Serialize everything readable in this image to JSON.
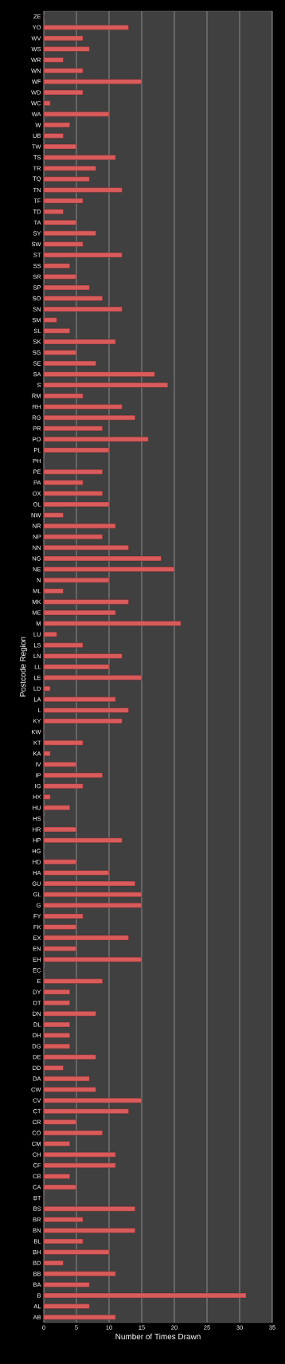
{
  "chart_data": {
    "type": "bar",
    "orientation": "horizontal",
    "xlabel": "Number  of Times Drawn",
    "ylabel": "Postcode Region",
    "categories": [
      "ZE",
      "YO",
      "WV",
      "WS",
      "WR",
      "WN",
      "WF",
      "WD",
      "WC",
      "WA",
      "W",
      "UB",
      "TW",
      "TS",
      "TR",
      "TQ",
      "TN",
      "TF",
      "TD",
      "TA",
      "SY",
      "SW",
      "ST",
      "SS",
      "SR",
      "SP",
      "SO",
      "SN",
      "SM",
      "SL",
      "SK",
      "SG",
      "SE",
      "SA",
      "S",
      "RM",
      "RH",
      "RG",
      "PR",
      "PO",
      "PL",
      "PH",
      "PE",
      "PA",
      "OX",
      "OL",
      "NW",
      "NR",
      "NP",
      "NN",
      "NG",
      "NE",
      "N",
      "ML",
      "MK",
      "ME",
      "M",
      "LU",
      "LS",
      "LN",
      "LL",
      "LE",
      "LD",
      "LA",
      "L",
      "KY",
      "KW",
      "KT",
      "KA",
      "IV",
      "IP",
      "IG",
      "HX",
      "HU",
      "HS",
      "HR",
      "HP",
      "HG",
      "HD",
      "HA",
      "GU",
      "GL",
      "G",
      "FY",
      "FK",
      "EX",
      "EN",
      "EH",
      "EC",
      "E",
      "DY",
      "DT",
      "DN",
      "DL",
      "DH",
      "DG",
      "DE",
      "DD",
      "DA",
      "CW",
      "CV",
      "CT",
      "CR",
      "CO",
      "CM",
      "CH",
      "CF",
      "CB",
      "CA",
      "BT",
      "BS",
      "BR",
      "BN",
      "BL",
      "BH",
      "BD",
      "BB",
      "BA",
      "B",
      "AL",
      "AB"
    ],
    "values": [
      0,
      13,
      6,
      7,
      3,
      6,
      15,
      6,
      1,
      10,
      4,
      3,
      5,
      11,
      8,
      7,
      12,
      6,
      3,
      5,
      8,
      6,
      12,
      4,
      5,
      7,
      9,
      12,
      2,
      4,
      11,
      5,
      8,
      17,
      19,
      6,
      12,
      14,
      9,
      16,
      10,
      0,
      9,
      6,
      9,
      10,
      3,
      11,
      9,
      13,
      18,
      20,
      10,
      3,
      13,
      11,
      21,
      2,
      6,
      12,
      10,
      15,
      1,
      11,
      13,
      12,
      0,
      6,
      1,
      5,
      9,
      6,
      1,
      4,
      0,
      5,
      12,
      0,
      5,
      10,
      14,
      15,
      15,
      6,
      5,
      13,
      5,
      15,
      0,
      9,
      4,
      4,
      8,
      4,
      4,
      4,
      8,
      3,
      7,
      8,
      15,
      13,
      5,
      9,
      4,
      11,
      11,
      4,
      5,
      0,
      14,
      6,
      14,
      6,
      10,
      3,
      11,
      7,
      31,
      7,
      11
    ],
    "color": "#d95b5b",
    "xlim": [
      0,
      35
    ],
    "xticks": [
      0,
      5,
      10,
      15,
      20,
      25,
      30,
      35
    ],
    "grid": "x"
  }
}
